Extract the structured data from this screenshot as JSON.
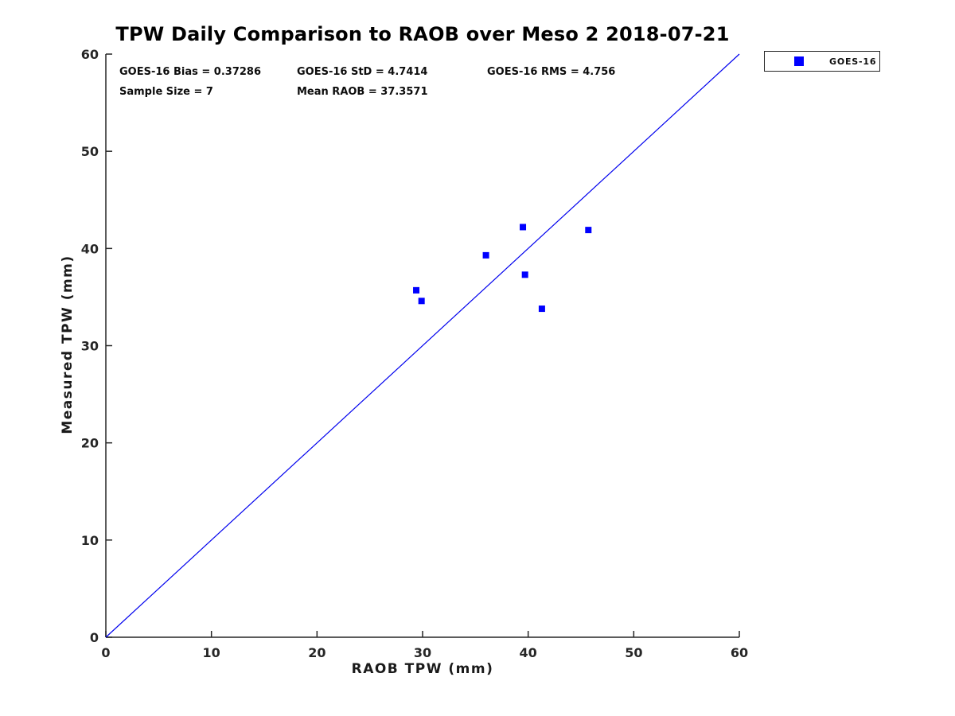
{
  "title": "TPW Daily Comparison to RAOB over Meso 2 2018-07-21",
  "stats": {
    "bias": "GOES-16 Bias = 0.37286",
    "std": "GOES-16 StD = 4.7414",
    "rms": "GOES-16 RMS = 4.756",
    "sample_size": "Sample Size = 7",
    "mean_raob": "Mean RAOB = 37.3571"
  },
  "legend": {
    "position": "top-right-outside",
    "items": [
      {
        "label": "GOES-16",
        "marker": "square",
        "color": "#0000FF"
      }
    ]
  },
  "colors": {
    "marker": "#0000FF",
    "reference_line": "#0000EE",
    "axis": "#262626",
    "text": "#000000",
    "background": "#FFFFFF"
  },
  "chart_data": {
    "type": "scatter",
    "title": "TPW Daily Comparison to RAOB over Meso 2 2018-07-21",
    "xlabel": "RAOB TPW (mm)",
    "ylabel": "Measured TPW (mm)",
    "xlim": [
      0,
      60
    ],
    "ylim": [
      0,
      60
    ],
    "xticks": [
      0,
      10,
      20,
      30,
      40,
      50,
      60
    ],
    "yticks": [
      0,
      10,
      20,
      30,
      40,
      50,
      60
    ],
    "grid": false,
    "legend_position": "top-right-outside",
    "series": [
      {
        "name": "GOES-16",
        "marker": "square",
        "color": "#0000FF",
        "points": [
          [
            29.4,
            35.7
          ],
          [
            29.9,
            34.6
          ],
          [
            36.0,
            39.3
          ],
          [
            39.5,
            42.2
          ],
          [
            39.7,
            37.3
          ],
          [
            41.3,
            33.8
          ],
          [
            45.7,
            41.9
          ]
        ]
      }
    ],
    "reference_line": {
      "from": [
        0,
        0
      ],
      "to": [
        60,
        60
      ],
      "color": "#0000EE"
    }
  }
}
